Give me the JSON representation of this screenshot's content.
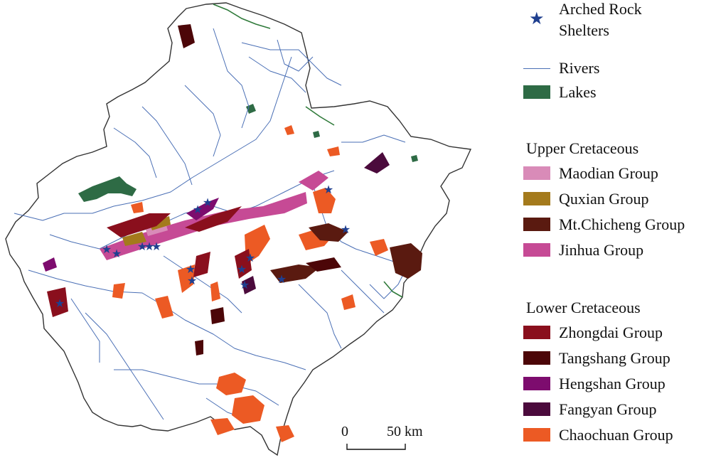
{
  "legend": {
    "symbols": [
      {
        "label": "Arched Rock Shelters",
        "line1": "Arched Rock",
        "line2": "Shelters",
        "icon": "star-icon",
        "color": "#1f3f8f"
      },
      {
        "label": "Rivers",
        "icon": "river-line-icon",
        "color": "#4a6fb5"
      },
      {
        "label": "Lakes",
        "icon": "lake-swatch",
        "color": "#2e6b45"
      }
    ],
    "upper_heading": "Upper Cretaceous",
    "upper": [
      {
        "label": "Maodian Group",
        "color": "#d98bb8"
      },
      {
        "label": "Quxian Group",
        "color": "#a47a1c"
      },
      {
        "label": "Mt.Chicheng Group",
        "color": "#5a1a10"
      },
      {
        "label": "Jinhua Group",
        "color": "#c64a95"
      }
    ],
    "lower_heading": "Lower Cretaceous",
    "lower": [
      {
        "label": "Zhongdai Group",
        "color": "#8a0f1d"
      },
      {
        "label": "Tangshang Group",
        "color": "#4c0608"
      },
      {
        "label": "Hengshan Group",
        "color": "#7d0c6e"
      },
      {
        "label": "Fangyan Group",
        "color": "#4b0a3c"
      },
      {
        "label": "Chaochuan Group",
        "color": "#ec5a24"
      }
    ]
  },
  "scale_bar": {
    "start_label": "0",
    "end_label": "50 km"
  },
  "colors": {
    "boundary": "#333333",
    "river": "#4a6fb5",
    "lake": "#2e6b45",
    "coast": "#2f7a3a"
  }
}
